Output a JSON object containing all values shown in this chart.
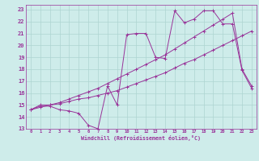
{
  "xlabel": "Windchill (Refroidissement éolien,°C)",
  "bg_color": "#ceecea",
  "grid_color": "#aed4d1",
  "line_color": "#993399",
  "xlim": [
    -0.5,
    23.5
  ],
  "ylim": [
    13,
    23.4
  ],
  "xticks": [
    0,
    1,
    2,
    3,
    4,
    5,
    6,
    7,
    8,
    9,
    10,
    11,
    12,
    13,
    14,
    15,
    16,
    17,
    18,
    19,
    20,
    21,
    22,
    23
  ],
  "yticks": [
    13,
    14,
    15,
    16,
    17,
    18,
    19,
    20,
    21,
    22,
    23
  ],
  "line1_x": [
    0,
    1,
    2,
    3,
    4,
    5,
    6,
    7,
    8,
    9,
    10,
    11,
    12,
    13,
    14,
    15,
    16,
    17,
    18,
    19,
    20,
    21,
    22,
    23
  ],
  "line1_y": [
    14.6,
    14.9,
    14.9,
    14.6,
    14.5,
    14.3,
    13.3,
    13.0,
    16.6,
    15.0,
    20.9,
    21.0,
    21.0,
    19.0,
    18.9,
    22.9,
    21.9,
    22.2,
    22.9,
    22.9,
    21.8,
    21.8,
    17.9,
    16.4
  ],
  "line2_x": [
    0,
    1,
    2,
    3,
    4,
    5,
    6,
    7,
    8,
    9,
    10,
    11,
    12,
    13,
    14,
    15,
    16,
    17,
    18,
    19,
    20,
    21,
    22,
    23
  ],
  "line2_y": [
    14.6,
    14.8,
    15.0,
    15.1,
    15.3,
    15.5,
    15.6,
    15.8,
    16.0,
    16.2,
    16.5,
    16.8,
    17.1,
    17.4,
    17.7,
    18.1,
    18.5,
    18.8,
    19.2,
    19.6,
    20.0,
    20.4,
    20.8,
    21.2
  ],
  "line3_x": [
    0,
    1,
    2,
    3,
    4,
    5,
    6,
    7,
    8,
    9,
    10,
    11,
    12,
    13,
    14,
    15,
    16,
    17,
    18,
    19,
    20,
    21,
    22,
    23
  ],
  "line3_y": [
    14.6,
    15.0,
    15.0,
    15.2,
    15.5,
    15.8,
    16.1,
    16.4,
    16.8,
    17.2,
    17.6,
    18.0,
    18.4,
    18.8,
    19.2,
    19.7,
    20.2,
    20.7,
    21.2,
    21.7,
    22.2,
    22.7,
    18.0,
    16.6
  ]
}
